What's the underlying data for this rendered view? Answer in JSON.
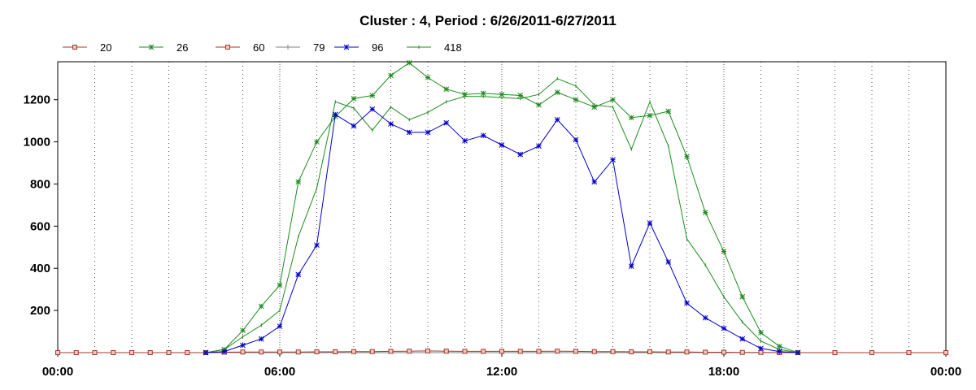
{
  "chart_data": {
    "type": "line",
    "title": "Cluster : 4, Period : 6/26/2011-6/27/2011",
    "xlabel": "",
    "ylabel": "",
    "x_axis": {
      "start": "00:00",
      "end": "00:00",
      "ticks": [
        "00:00",
        "06:00",
        "12:00",
        "18:00",
        "00:00"
      ],
      "tick_hours": [
        0,
        6,
        12,
        18,
        24
      ]
    },
    "ylim": [
      0,
      1380
    ],
    "y_ticks": [
      200,
      400,
      600,
      800,
      1000,
      1200
    ],
    "grid": "vertical-dotted",
    "legend_position": "top-left",
    "series": [
      {
        "name": "20",
        "color": "#a0392b",
        "marker": "square",
        "points": [
          [
            0,
            0
          ],
          [
            0.5,
            0
          ],
          [
            1,
            0
          ],
          [
            1.5,
            0
          ],
          [
            2,
            0
          ],
          [
            2.5,
            0
          ],
          [
            3,
            0
          ],
          [
            3.5,
            0
          ],
          [
            4,
            0
          ],
          [
            4.5,
            2
          ],
          [
            5,
            3
          ],
          [
            5.5,
            3
          ],
          [
            6,
            3
          ],
          [
            6.5,
            3
          ],
          [
            7,
            4
          ],
          [
            7.5,
            4
          ],
          [
            8,
            5
          ],
          [
            8.5,
            5
          ],
          [
            9,
            6
          ],
          [
            9.5,
            7
          ],
          [
            10,
            8
          ],
          [
            10.5,
            7
          ],
          [
            11,
            6
          ],
          [
            11.5,
            6
          ],
          [
            12,
            6
          ],
          [
            12.5,
            6
          ],
          [
            13,
            6
          ],
          [
            13.5,
            7
          ],
          [
            14,
            6
          ],
          [
            14.5,
            5
          ],
          [
            15,
            5
          ],
          [
            15.5,
            4
          ],
          [
            16,
            4
          ],
          [
            16.5,
            3
          ],
          [
            17,
            3
          ],
          [
            17.5,
            2
          ],
          [
            18,
            2
          ],
          [
            18.5,
            1
          ],
          [
            19,
            1
          ],
          [
            19.5,
            0
          ],
          [
            20,
            0
          ],
          [
            21,
            0
          ],
          [
            22,
            0
          ],
          [
            23,
            0
          ],
          [
            24,
            0
          ]
        ]
      },
      {
        "name": "26",
        "color": "#1e8c1e",
        "marker": "star",
        "points": [
          [
            4,
            0
          ],
          [
            4.5,
            15
          ],
          [
            5,
            105
          ],
          [
            5.5,
            220
          ],
          [
            6,
            320
          ],
          [
            6.5,
            810
          ],
          [
            7,
            1000
          ],
          [
            7.5,
            1120
          ],
          [
            8,
            1205
          ],
          [
            8.5,
            1220
          ],
          [
            9,
            1315
          ],
          [
            9.5,
            1375
          ],
          [
            10,
            1305
          ],
          [
            10.5,
            1250
          ],
          [
            11,
            1225
          ],
          [
            11.5,
            1230
          ],
          [
            12,
            1225
          ],
          [
            12.5,
            1220
          ],
          [
            13,
            1175
          ],
          [
            13.5,
            1235
          ],
          [
            14,
            1200
          ],
          [
            14.5,
            1165
          ],
          [
            15,
            1200
          ],
          [
            15.5,
            1115
          ],
          [
            16,
            1125
          ],
          [
            16.5,
            1145
          ],
          [
            17,
            930
          ],
          [
            17.5,
            665
          ],
          [
            18,
            480
          ],
          [
            18.5,
            265
          ],
          [
            19,
            95
          ],
          [
            19.5,
            30
          ],
          [
            20,
            0
          ]
        ]
      },
      {
        "name": "60",
        "color": "#a0392b",
        "marker": "square",
        "points": [
          [
            0,
            0
          ],
          [
            24,
            0
          ]
        ]
      },
      {
        "name": "79",
        "color": "#808080",
        "marker": "plus",
        "points": [
          [
            0,
            0
          ],
          [
            24,
            0
          ]
        ]
      },
      {
        "name": "96",
        "color": "#0000cc",
        "marker": "star",
        "points": [
          [
            4,
            0
          ],
          [
            4.5,
            5
          ],
          [
            5,
            35
          ],
          [
            5.5,
            65
          ],
          [
            6,
            125
          ],
          [
            6.5,
            370
          ],
          [
            7,
            510
          ],
          [
            7.5,
            1130
          ],
          [
            8,
            1075
          ],
          [
            8.5,
            1155
          ],
          [
            9,
            1085
          ],
          [
            9.5,
            1045
          ],
          [
            10,
            1045
          ],
          [
            10.5,
            1090
          ],
          [
            11,
            1005
          ],
          [
            11.5,
            1030
          ],
          [
            12,
            985
          ],
          [
            12.5,
            940
          ],
          [
            13,
            980
          ],
          [
            13.5,
            1105
          ],
          [
            14,
            1010
          ],
          [
            14.5,
            810
          ],
          [
            15,
            915
          ],
          [
            15.5,
            410
          ],
          [
            16,
            615
          ],
          [
            16.5,
            430
          ],
          [
            17,
            235
          ],
          [
            17.5,
            165
          ],
          [
            18,
            115
          ],
          [
            18.5,
            65
          ],
          [
            19,
            20
          ],
          [
            19.5,
            5
          ],
          [
            20,
            0
          ]
        ]
      },
      {
        "name": "418",
        "color": "#1e8c1e",
        "marker": "tick",
        "points": [
          [
            4,
            0
          ],
          [
            4.5,
            15
          ],
          [
            5,
            75
          ],
          [
            5.5,
            130
          ],
          [
            6,
            200
          ],
          [
            6.5,
            550
          ],
          [
            7,
            780
          ],
          [
            7.5,
            1190
          ],
          [
            8,
            1160
          ],
          [
            8.5,
            1055
          ],
          [
            9,
            1165
          ],
          [
            9.5,
            1105
          ],
          [
            10,
            1140
          ],
          [
            10.5,
            1190
          ],
          [
            11,
            1215
          ],
          [
            11.5,
            1215
          ],
          [
            12,
            1210
          ],
          [
            12.5,
            1205
          ],
          [
            13,
            1225
          ],
          [
            13.5,
            1300
          ],
          [
            14,
            1265
          ],
          [
            14.5,
            1175
          ],
          [
            15,
            1165
          ],
          [
            15.5,
            965
          ],
          [
            16,
            1190
          ],
          [
            16.5,
            980
          ],
          [
            17,
            540
          ],
          [
            17.5,
            415
          ],
          [
            18,
            265
          ],
          [
            18.5,
            145
          ],
          [
            19,
            55
          ],
          [
            19.5,
            15
          ],
          [
            20,
            0
          ]
        ]
      }
    ]
  }
}
